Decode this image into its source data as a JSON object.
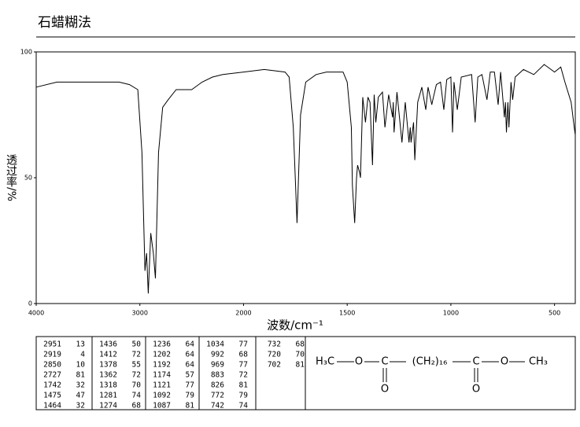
{
  "chart_data": {
    "type": "line",
    "title": "石蜡糊法",
    "x_label": "波数/cm⁻¹",
    "y_label": "透过率/%",
    "xlim": [
      4000,
      400
    ],
    "ylim": [
      0,
      100
    ],
    "xticks": [
      4000,
      3000,
      2000,
      1500,
      1000,
      500
    ],
    "yticks": [
      0,
      50,
      100
    ],
    "x": [
      4000,
      3800,
      3500,
      3400,
      3200,
      3100,
      3020,
      2980,
      2951,
      2935,
      2919,
      2895,
      2870,
      2850,
      2820,
      2780,
      2727,
      2650,
      2500,
      2400,
      2300,
      2200,
      2000,
      1900,
      1800,
      1780,
      1760,
      1742,
      1725,
      1700,
      1650,
      1600,
      1520,
      1500,
      1480,
      1475,
      1464,
      1455,
      1450,
      1440,
      1436,
      1425,
      1412,
      1400,
      1390,
      1378,
      1370,
      1362,
      1350,
      1330,
      1318,
      1300,
      1281,
      1278,
      1274,
      1260,
      1236,
      1220,
      1202,
      1196,
      1192,
      1180,
      1174,
      1160,
      1140,
      1121,
      1110,
      1092,
      1087,
      1070,
      1050,
      1034,
      1020,
      1000,
      992,
      985,
      969,
      950,
      900,
      883,
      870,
      850,
      826,
      810,
      790,
      772,
      760,
      742,
      737,
      732,
      725,
      720,
      710,
      702,
      690,
      650,
      600,
      550,
      500,
      470,
      450,
      420,
      405,
      400
    ],
    "series": [
      {
        "color": "#000000",
        "values": [
          86,
          88,
          88,
          88,
          88,
          87,
          85,
          60,
          13,
          20,
          4,
          28,
          20,
          10,
          60,
          78,
          81,
          85,
          85,
          88,
          90,
          91,
          92,
          93,
          92,
          90,
          70,
          32,
          75,
          88,
          91,
          92,
          92,
          88,
          70,
          47,
          32,
          50,
          55,
          52,
          50,
          82,
          72,
          82,
          80,
          55,
          83,
          72,
          82,
          84,
          70,
          83,
          74,
          80,
          68,
          84,
          64,
          80,
          64,
          70,
          64,
          72,
          57,
          80,
          86,
          77,
          86,
          79,
          81,
          87,
          88,
          77,
          89,
          90,
          68,
          88,
          77,
          90,
          91,
          72,
          90,
          91,
          81,
          92,
          92,
          79,
          92,
          74,
          80,
          68,
          80,
          70,
          88,
          81,
          90,
          93,
          91,
          95,
          92,
          94,
          88,
          80,
          70,
          67
        ]
      }
    ]
  },
  "peak_table": {
    "columns": [
      [
        [
          2951,
          13
        ],
        [
          2919,
          4
        ],
        [
          2850,
          10
        ],
        [
          2727,
          81
        ],
        [
          1742,
          32
        ],
        [
          1475,
          47
        ],
        [
          1464,
          32
        ]
      ],
      [
        [
          1436,
          50
        ],
        [
          1412,
          72
        ],
        [
          1378,
          55
        ],
        [
          1362,
          72
        ],
        [
          1318,
          70
        ],
        [
          1281,
          74
        ],
        [
          1274,
          68
        ]
      ],
      [
        [
          1236,
          64
        ],
        [
          1202,
          64
        ],
        [
          1192,
          64
        ],
        [
          1174,
          57
        ],
        [
          1121,
          77
        ],
        [
          1092,
          79
        ],
        [
          1087,
          81
        ]
      ],
      [
        [
          1034,
          77
        ],
        [
          992,
          68
        ],
        [
          969,
          77
        ],
        [
          883,
          72
        ],
        [
          826,
          81
        ],
        [
          772,
          79
        ],
        [
          742,
          74
        ]
      ],
      [
        [
          732,
          68
        ],
        [
          720,
          70
        ],
        [
          702,
          81
        ]
      ]
    ]
  },
  "structure": {
    "labels": [
      "H₃C",
      "O",
      "C",
      "(CH₂)₁₆",
      "C",
      "O",
      "CH₃",
      "O",
      "O"
    ]
  }
}
